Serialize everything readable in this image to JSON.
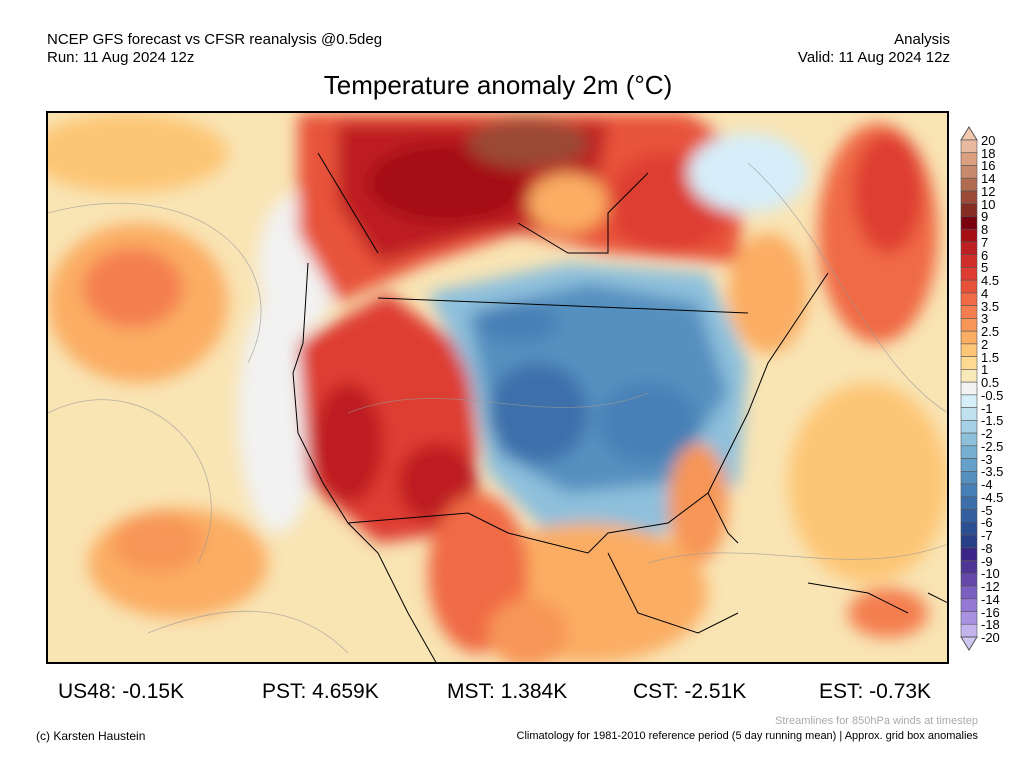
{
  "header": {
    "left_line1": "NCEP GFS forecast vs CFSR reanalysis @0.5deg",
    "left_line2": "Run: 11 Aug 2024 12z",
    "right_line1": "Analysis",
    "right_line2": "Valid: 11 Aug 2024 12z",
    "title": "Temperature anomaly 2m (°C)"
  },
  "colorbar": {
    "labels": [
      "20",
      "18",
      "16",
      "14",
      "12",
      "10",
      "9",
      "8",
      "7",
      "6",
      "5",
      "4.5",
      "4",
      "3.5",
      "3",
      "2.5",
      "2",
      "1.5",
      "1",
      "0.5",
      "-0.5",
      "-1",
      "-1.5",
      "-2",
      "-2.5",
      "-3",
      "-3.5",
      "-4",
      "-4.5",
      "-5",
      "-6",
      "-7",
      "-8",
      "-9",
      "-10",
      "-12",
      "-14",
      "-16",
      "-18",
      "-20"
    ],
    "colors": [
      "#e9b9a0",
      "#dca080",
      "#c88a6c",
      "#b06c50",
      "#9a4a36",
      "#862c22",
      "#7a0010",
      "#a50f15",
      "#bd1f22",
      "#cf2e2a",
      "#de3c30",
      "#e8523a",
      "#f06a45",
      "#f47e4f",
      "#f79657",
      "#fbad63",
      "#fdc676",
      "#fdd991",
      "#f8eab8",
      "#f2f2f2",
      "#d6eef9",
      "#bfe1f0",
      "#a6d0e6",
      "#8ec0dc",
      "#76afd2",
      "#64a0c9",
      "#5590c0",
      "#4680b6",
      "#3c6faa",
      "#345f9f",
      "#2c4f93",
      "#273f86",
      "#3b2586",
      "#4e3596",
      "#6548aa",
      "#7c60c0",
      "#9478d4",
      "#aa92e2",
      "#c3b4ee"
    ],
    "over_color": "#f2c8b0",
    "under_color": "#cfc6f2"
  },
  "stats": [
    {
      "label": "US48: -0.15K"
    },
    {
      "label": "PST: 4.659K"
    },
    {
      "label": "MST: 1.384K"
    },
    {
      "label": "CST: -2.51K"
    },
    {
      "label": "EST: -0.73K"
    }
  ],
  "footer": {
    "credit": "(c) Karsten Haustein",
    "streamlines_note": "Streamlines for 850hPa winds at timestep",
    "climatology_note": "Climatology for 1981-2010 reference period (5 day running mean) | Approx. grid box anomalies"
  }
}
